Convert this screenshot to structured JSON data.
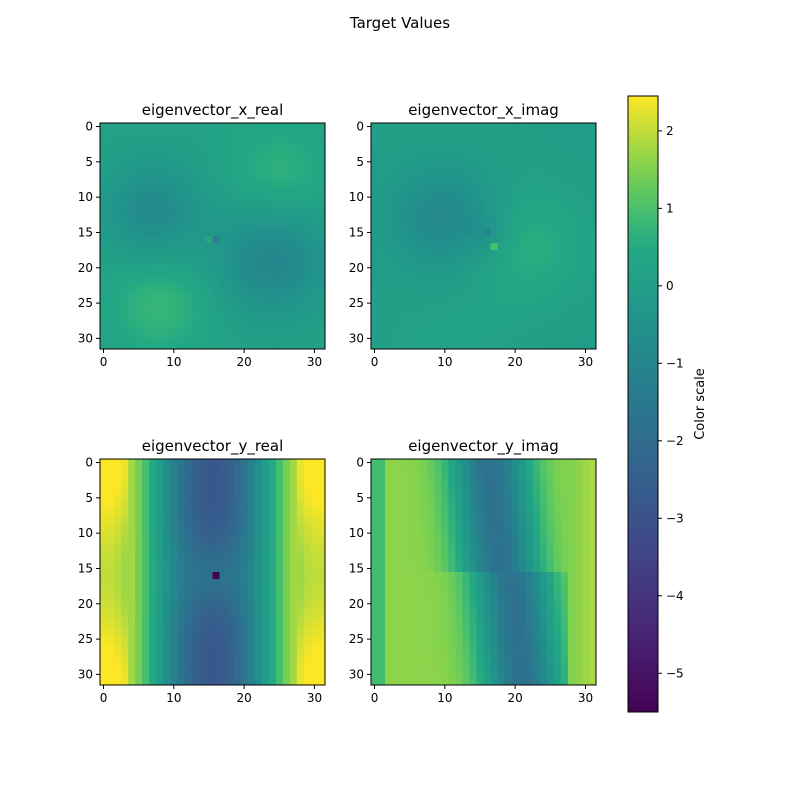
{
  "figure": {
    "title": "Target Values"
  },
  "colorbar": {
    "label": "Color scale",
    "range": [
      -5.5,
      2.45
    ],
    "ticks": [
      2,
      1,
      0,
      -1,
      -2,
      -3,
      -4,
      -5
    ],
    "tick_labels": [
      "2",
      "1",
      "0",
      "−1",
      "−2",
      "−3",
      "−4",
      "−5"
    ],
    "colormap": "viridis"
  },
  "chart_data": [
    {
      "type": "heatmap",
      "title": "eigenvector_x_real",
      "grid_size": [
        32,
        32
      ],
      "xticks": [
        0,
        10,
        20,
        30
      ],
      "yticks": [
        0,
        5,
        10,
        15,
        20,
        25,
        30
      ],
      "value_range": [
        -1.2,
        0.9
      ],
      "pattern": "two lobes: negative blob upper-left (~x7,y12) and lower-right (~x24,y19); positive blobs upper-right (~x24,y8) and lower-left (~x8,y24); singular point near (16,16)"
    },
    {
      "type": "heatmap",
      "title": "eigenvector_x_imag",
      "grid_size": [
        32,
        32
      ],
      "xticks": [
        0,
        10,
        20,
        30
      ],
      "yticks": [
        0,
        5,
        10,
        15,
        20,
        25,
        30
      ],
      "value_range": [
        -1.0,
        1.0
      ],
      "pattern": "negative region upper-left centered (~x10,y13), positive region right (~x22,y18); sharp dipole near (16,16)"
    },
    {
      "type": "heatmap",
      "title": "eigenvector_y_real",
      "grid_size": [
        32,
        32
      ],
      "xticks": [
        0,
        10,
        20,
        30
      ],
      "yticks": [
        0,
        5,
        10,
        15,
        20,
        25,
        30
      ],
      "value_range": [
        -5.5,
        2.4
      ],
      "pattern": "bright edges (~2.3) at x=0 and x=31, dark central column (~-2.8) pinched at y=16; minimum -5.5 at (16,16)"
    },
    {
      "type": "heatmap",
      "title": "eigenvector_y_imag",
      "grid_size": [
        32,
        32
      ],
      "xticks": [
        0,
        10,
        20,
        30
      ],
      "yticks": [
        0,
        5,
        10,
        15,
        20,
        25,
        30
      ],
      "value_range": [
        -2.0,
        1.9
      ],
      "pattern": "diagonal band: bright left half, dark band from (~x18,y0) to (~x20,y31), bright right edge; step discontinuity at y=16"
    }
  ]
}
